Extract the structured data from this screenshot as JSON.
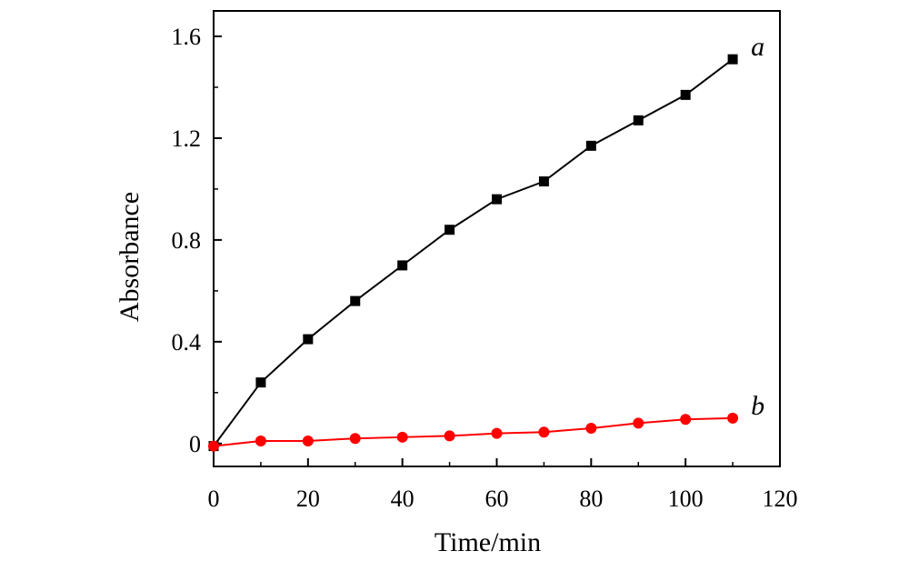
{
  "chart_data": {
    "type": "line",
    "title": "",
    "xlabel": "Time/min",
    "ylabel": "Absorbance",
    "xlim": [
      0,
      120
    ],
    "ylim": [
      -0.09,
      1.7
    ],
    "x_ticks": [
      0,
      20,
      40,
      60,
      80,
      100,
      120
    ],
    "x_tick_labels": [
      "0",
      "20",
      "40",
      "60",
      "80",
      "100",
      "120"
    ],
    "y_ticks": [
      0,
      0.4,
      0.8,
      1.2,
      1.6
    ],
    "y_tick_labels": [
      "0",
      "0.4",
      "0.8",
      "1.2",
      "1.6"
    ],
    "grid": false,
    "series": [
      {
        "name": "a",
        "color": "#000000",
        "marker": "square",
        "x": [
          0,
          10,
          20,
          30,
          40,
          50,
          60,
          70,
          80,
          90,
          100,
          110
        ],
        "y": [
          -0.01,
          0.24,
          0.41,
          0.56,
          0.7,
          0.84,
          0.96,
          1.03,
          1.17,
          1.27,
          1.37,
          1.51
        ]
      },
      {
        "name": "b",
        "color": "#ff0000",
        "marker": "circle",
        "x": [
          0,
          10,
          20,
          30,
          40,
          50,
          60,
          70,
          80,
          90,
          100,
          110
        ],
        "y": [
          -0.01,
          0.01,
          0.01,
          0.02,
          0.025,
          0.03,
          0.04,
          0.045,
          0.06,
          0.08,
          0.095,
          0.1
        ]
      }
    ]
  }
}
